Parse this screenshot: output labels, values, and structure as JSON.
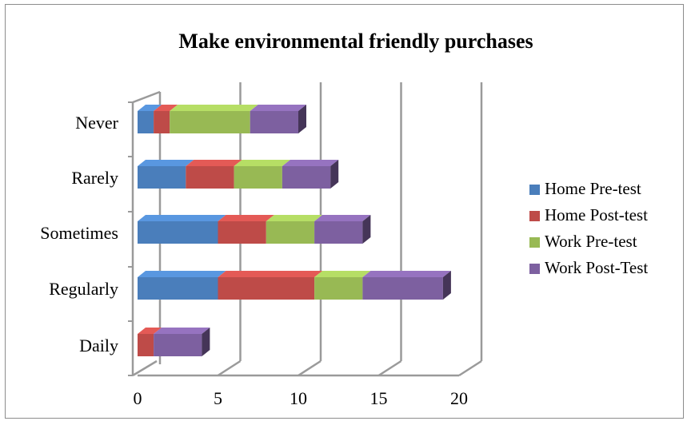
{
  "chart_data": {
    "type": "bar",
    "orientation": "horizontal",
    "stacked": true,
    "three_d": true,
    "title": "Make environmental friendly purchases",
    "xlabel": "",
    "ylabel": "",
    "categories": [
      "Never",
      "Rarely",
      "Sometimes",
      "Regularly",
      "Daily"
    ],
    "xlim": [
      0,
      20
    ],
    "xticks": [
      0,
      5,
      10,
      15,
      20
    ],
    "grid": true,
    "legend_position": "right",
    "series": [
      {
        "name": "Home Pre-test",
        "color": "#4a7ebb",
        "values": [
          1,
          3,
          5,
          5,
          0
        ]
      },
      {
        "name": "Home Post-test",
        "color": "#be4b48",
        "values": [
          1,
          3,
          3,
          6,
          1
        ]
      },
      {
        "name": "Work Pre-test",
        "color": "#98b954",
        "values": [
          5,
          3,
          3,
          3,
          0
        ]
      },
      {
        "name": "Work Post-Test",
        "color": "#7d60a0",
        "values": [
          3,
          3,
          3,
          5,
          3
        ]
      }
    ]
  }
}
